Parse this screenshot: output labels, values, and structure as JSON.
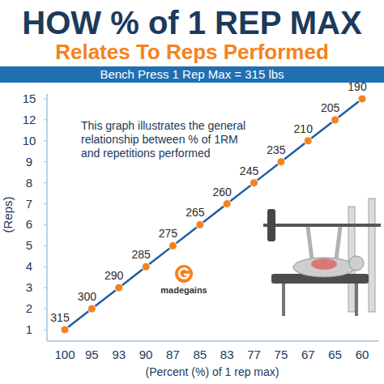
{
  "chart_data": {
    "type": "line",
    "title": "HOW % of 1 REP MAX",
    "subtitle": "Relates To Reps Performed",
    "banner": "Bench Press 1 Rep Max = 315 lbs",
    "annotation": "This graph illustrates the general relationship between % of 1RM and repetitions performed",
    "logo": "madegains",
    "x_label": "(Percent (%) of 1 rep max)",
    "y_label": "(Reps)",
    "categories": [
      "100",
      "95",
      "93",
      "90",
      "87",
      "85",
      "83",
      "77",
      "75",
      "67",
      "65",
      "60"
    ],
    "values": [
      1,
      2,
      3,
      4,
      5,
      6,
      7,
      8,
      9,
      10,
      12,
      15
    ],
    "weights": [
      315,
      300,
      290,
      285,
      275,
      265,
      260,
      245,
      235,
      210,
      205,
      190
    ],
    "ylim": [
      1,
      15
    ],
    "yticks": [
      1,
      2,
      3,
      4,
      5,
      6,
      7,
      8,
      9,
      10,
      12,
      15
    ],
    "color": "#1f5f9e",
    "marker": "circle"
  }
}
